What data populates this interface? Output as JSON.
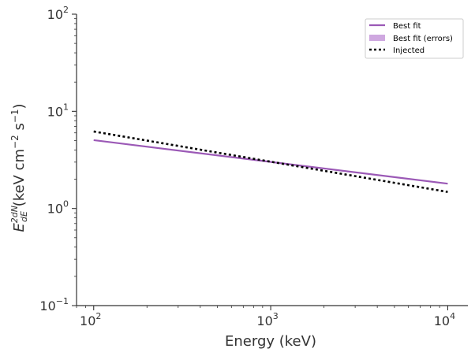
{
  "chart_data": {
    "type": "line",
    "xscale": "log",
    "yscale": "log",
    "xlim": [
      80,
      13000
    ],
    "ylim": [
      0.1,
      100
    ],
    "xlabel": "Energy (keV)",
    "ylabel": {
      "base": "E",
      "superscript": "2dN",
      "fraction_denominator": "dE",
      "units_prefix": " (keV cm",
      "units_exp1": "−2",
      "units_mid": " s",
      "units_exp2": "−1",
      "units_suffix": ")"
    },
    "xticks": [
      {
        "value": 100,
        "base": "10",
        "exp": "2"
      },
      {
        "value": 1000,
        "base": "10",
        "exp": "3"
      },
      {
        "value": 10000,
        "base": "10",
        "exp": "4"
      }
    ],
    "yticks": [
      {
        "value": 0.1,
        "base": "10",
        "exp": "−1"
      },
      {
        "value": 1,
        "base": "10",
        "exp": "0"
      },
      {
        "value": 10,
        "base": "10",
        "exp": "1"
      },
      {
        "value": 100,
        "base": "10",
        "exp": "2"
      }
    ],
    "series": [
      {
        "name": "Best fit",
        "style": "solid",
        "color": "#9b59b6",
        "x": [
          100,
          10000
        ],
        "y": [
          5.05,
          1.8
        ]
      },
      {
        "name": "Best fit (errors)",
        "style": "band",
        "color": "#cfa8e0",
        "x": [
          100,
          10000
        ],
        "y_low": [
          5.05,
          1.8
        ],
        "y_high": [
          5.05,
          1.8
        ]
      },
      {
        "name": "Injected",
        "style": "dotted",
        "color": "#000000",
        "x": [
          100,
          10000
        ],
        "y": [
          6.2,
          1.48
        ]
      }
    ],
    "legend": {
      "position": "top-right",
      "entries": [
        "Best fit",
        "Best fit (errors)",
        "Injected"
      ]
    }
  }
}
